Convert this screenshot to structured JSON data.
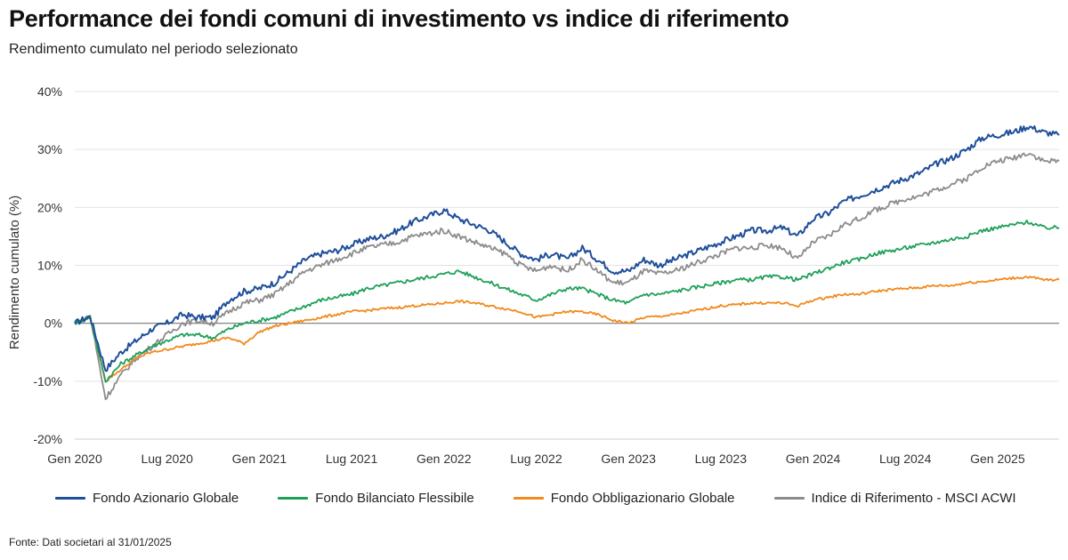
{
  "header": {
    "title": "Performance dei fondi comuni di investimento vs indice di riferimento",
    "subtitle": "Rendimento cumulato nel periodo selezionato"
  },
  "footer": {
    "source": "Fonte: Dati societari al 31/01/2025"
  },
  "colors": {
    "azionario": "#1f4e9a",
    "bilanciato": "#1fa05a",
    "obbligazionario": "#f08a1c",
    "indice": "#8c8c8c",
    "grid": "#e3e3e3",
    "zero": "#777777"
  },
  "chart_data": {
    "type": "line",
    "title": "Performance dei fondi comuni di investimento vs indice di riferimento",
    "subtitle": "Rendimento cumulato nel periodo selezionato",
    "xlabel": "",
    "ylabel": "Rendimento cumulato (%)",
    "ylim": [
      -20,
      40
    ],
    "yticks": [
      -20,
      -10,
      0,
      10,
      20,
      30,
      40
    ],
    "ytick_labels": [
      "-20%",
      "-10%",
      "0%",
      "10%",
      "20%",
      "30%",
      "40%"
    ],
    "xlim": [
      "2020-01",
      "2025-05"
    ],
    "xticks": [
      "2020-01",
      "2020-07",
      "2021-01",
      "2021-07",
      "2022-01",
      "2022-07",
      "2023-01",
      "2023-07",
      "2024-01",
      "2024-07",
      "2025-01"
    ],
    "xtick_labels": [
      "Gen 2020",
      "Lug 2020",
      "Gen 2021",
      "Lug 2021",
      "Gen 2022",
      "Lug 2022",
      "Gen 2023",
      "Lug 2023",
      "Gen 2024",
      "Lug 2024",
      "Gen 2025"
    ],
    "grid": "horizontal",
    "legend_position": "bottom",
    "series": [
      {
        "name": "Fondo Azionario Globale",
        "color": "#1f4e9a",
        "points": [
          [
            "2020-01",
            0
          ],
          [
            "2020-02",
            1.2
          ],
          [
            "2020-03",
            -8
          ],
          [
            "2020-04",
            -5
          ],
          [
            "2020-05",
            -3
          ],
          [
            "2020-06",
            -1
          ],
          [
            "2020-07",
            0
          ],
          [
            "2020-08",
            1.5
          ],
          [
            "2020-09",
            1
          ],
          [
            "2020-10",
            1
          ],
          [
            "2020-11",
            4
          ],
          [
            "2020-12",
            5.5
          ],
          [
            "2021-01",
            6
          ],
          [
            "2021-02",
            7
          ],
          [
            "2021-03",
            9
          ],
          [
            "2021-04",
            11
          ],
          [
            "2021-05",
            12
          ],
          [
            "2021-06",
            12.5
          ],
          [
            "2021-07",
            13.5
          ],
          [
            "2021-08",
            14.5
          ],
          [
            "2021-09",
            15
          ],
          [
            "2021-10",
            16
          ],
          [
            "2021-11",
            17.5
          ],
          [
            "2021-12",
            18.5
          ],
          [
            "2022-01",
            19.5
          ],
          [
            "2022-02",
            18
          ],
          [
            "2022-03",
            17
          ],
          [
            "2022-04",
            16
          ],
          [
            "2022-05",
            14
          ],
          [
            "2022-06",
            12
          ],
          [
            "2022-07",
            11
          ],
          [
            "2022-08",
            12
          ],
          [
            "2022-09",
            11
          ],
          [
            "2022-10",
            13
          ],
          [
            "2022-11",
            11
          ],
          [
            "2022-12",
            9
          ],
          [
            "2023-01",
            9
          ],
          [
            "2023-02",
            11
          ],
          [
            "2023-03",
            10
          ],
          [
            "2023-04",
            11
          ],
          [
            "2023-05",
            12
          ],
          [
            "2023-06",
            13
          ],
          [
            "2023-07",
            14
          ],
          [
            "2023-08",
            15
          ],
          [
            "2023-09",
            16
          ],
          [
            "2023-10",
            16
          ],
          [
            "2023-11",
            16.5
          ],
          [
            "2023-12",
            15
          ],
          [
            "2024-01",
            18
          ],
          [
            "2024-02",
            19
          ],
          [
            "2024-03",
            21
          ],
          [
            "2024-04",
            22
          ],
          [
            "2024-05",
            23
          ],
          [
            "2024-06",
            24
          ],
          [
            "2024-07",
            25
          ],
          [
            "2024-08",
            26
          ],
          [
            "2024-09",
            27.5
          ],
          [
            "2024-10",
            28.5
          ],
          [
            "2024-11",
            30
          ],
          [
            "2024-12",
            32
          ],
          [
            "2025-01",
            32.5
          ],
          [
            "2025-02",
            33
          ],
          [
            "2025-03",
            34
          ],
          [
            "2025-04",
            33
          ],
          [
            "2025-05",
            32.5
          ]
        ]
      },
      {
        "name": "Fondo Bilanciato Flessibile",
        "color": "#1fa05a",
        "points": [
          [
            "2020-01",
            0
          ],
          [
            "2020-02",
            1.1
          ],
          [
            "2020-03",
            -10
          ],
          [
            "2020-04",
            -7
          ],
          [
            "2020-05",
            -5.5
          ],
          [
            "2020-06",
            -4
          ],
          [
            "2020-07",
            -3
          ],
          [
            "2020-08",
            -2
          ],
          [
            "2020-09",
            -2
          ],
          [
            "2020-10",
            -2.5
          ],
          [
            "2020-11",
            -1
          ],
          [
            "2020-12",
            0
          ],
          [
            "2021-01",
            0.5
          ],
          [
            "2021-02",
            1
          ],
          [
            "2021-03",
            2
          ],
          [
            "2021-04",
            3
          ],
          [
            "2021-05",
            4
          ],
          [
            "2021-06",
            4.5
          ],
          [
            "2021-07",
            5
          ],
          [
            "2021-08",
            6
          ],
          [
            "2021-09",
            6.5
          ],
          [
            "2021-10",
            7
          ],
          [
            "2021-11",
            7.5
          ],
          [
            "2021-12",
            8
          ],
          [
            "2022-01",
            8.5
          ],
          [
            "2022-02",
            9
          ],
          [
            "2022-03",
            8
          ],
          [
            "2022-04",
            7
          ],
          [
            "2022-05",
            6
          ],
          [
            "2022-06",
            5
          ],
          [
            "2022-07",
            4
          ],
          [
            "2022-08",
            5
          ],
          [
            "2022-09",
            6
          ],
          [
            "2022-10",
            6
          ],
          [
            "2022-11",
            5
          ],
          [
            "2022-12",
            4
          ],
          [
            "2023-01",
            3.5
          ],
          [
            "2023-02",
            5
          ],
          [
            "2023-03",
            5
          ],
          [
            "2023-04",
            5.5
          ],
          [
            "2023-05",
            6
          ],
          [
            "2023-06",
            6.5
          ],
          [
            "2023-07",
            7
          ],
          [
            "2023-08",
            7.5
          ],
          [
            "2023-09",
            7.5
          ],
          [
            "2023-10",
            8
          ],
          [
            "2023-11",
            8
          ],
          [
            "2023-12",
            7.5
          ],
          [
            "2024-01",
            8.5
          ],
          [
            "2024-02",
            9.5
          ],
          [
            "2024-03",
            10.5
          ],
          [
            "2024-04",
            11
          ],
          [
            "2024-05",
            12
          ],
          [
            "2024-06",
            12.5
          ],
          [
            "2024-07",
            13
          ],
          [
            "2024-08",
            13.5
          ],
          [
            "2024-09",
            14
          ],
          [
            "2024-10",
            14.5
          ],
          [
            "2024-11",
            15
          ],
          [
            "2024-12",
            16
          ],
          [
            "2025-01",
            16.5
          ],
          [
            "2025-02",
            17
          ],
          [
            "2025-03",
            17.5
          ],
          [
            "2025-04",
            16.5
          ],
          [
            "2025-05",
            16.5
          ]
        ]
      },
      {
        "name": "Fondo Obbligazionario Globale",
        "color": "#f08a1c",
        "points": [
          [
            "2020-01",
            0
          ],
          [
            "2020-02",
            1
          ],
          [
            "2020-03",
            -10
          ],
          [
            "2020-04",
            -8
          ],
          [
            "2020-05",
            -6
          ],
          [
            "2020-06",
            -5
          ],
          [
            "2020-07",
            -4.5
          ],
          [
            "2020-08",
            -4
          ],
          [
            "2020-09",
            -3.5
          ],
          [
            "2020-10",
            -3
          ],
          [
            "2020-11",
            -2.5
          ],
          [
            "2020-12",
            -3.5
          ],
          [
            "2021-01",
            -1.5
          ],
          [
            "2021-02",
            -0.5
          ],
          [
            "2021-03",
            0
          ],
          [
            "2021-04",
            0.5
          ],
          [
            "2021-05",
            1
          ],
          [
            "2021-06",
            1.5
          ],
          [
            "2021-07",
            2
          ],
          [
            "2021-08",
            2.2
          ],
          [
            "2021-09",
            2.5
          ],
          [
            "2021-10",
            2.7
          ],
          [
            "2021-11",
            3
          ],
          [
            "2021-12",
            3.2
          ],
          [
            "2022-01",
            3.5
          ],
          [
            "2022-02",
            3.8
          ],
          [
            "2022-03",
            3.5
          ],
          [
            "2022-04",
            3
          ],
          [
            "2022-05",
            2.5
          ],
          [
            "2022-06",
            2
          ],
          [
            "2022-07",
            1
          ],
          [
            "2022-08",
            1.5
          ],
          [
            "2022-09",
            2
          ],
          [
            "2022-10",
            2
          ],
          [
            "2022-11",
            1.5
          ],
          [
            "2022-12",
            0.5
          ],
          [
            "2023-01",
            0
          ],
          [
            "2023-02",
            1
          ],
          [
            "2023-03",
            1.2
          ],
          [
            "2023-04",
            1.5
          ],
          [
            "2023-05",
            2
          ],
          [
            "2023-06",
            2.5
          ],
          [
            "2023-07",
            3
          ],
          [
            "2023-08",
            3.2
          ],
          [
            "2023-09",
            3.5
          ],
          [
            "2023-10",
            3.5
          ],
          [
            "2023-11",
            3.5
          ],
          [
            "2023-12",
            3
          ],
          [
            "2024-01",
            4
          ],
          [
            "2024-02",
            4.5
          ],
          [
            "2024-03",
            5
          ],
          [
            "2024-04",
            5
          ],
          [
            "2024-05",
            5.5
          ],
          [
            "2024-06",
            5.8
          ],
          [
            "2024-07",
            6
          ],
          [
            "2024-08",
            6.2
          ],
          [
            "2024-09",
            6.5
          ],
          [
            "2024-10",
            6.5
          ],
          [
            "2024-11",
            7
          ],
          [
            "2024-12",
            7.2
          ],
          [
            "2025-01",
            7.5
          ],
          [
            "2025-02",
            7.8
          ],
          [
            "2025-03",
            8
          ],
          [
            "2025-04",
            7.5
          ],
          [
            "2025-05",
            7.5
          ]
        ]
      },
      {
        "name": "Indice di Riferimento - MSCI ACWI",
        "color": "#8c8c8c",
        "points": [
          [
            "2020-01",
            0
          ],
          [
            "2020-02",
            1.3
          ],
          [
            "2020-03",
            -13
          ],
          [
            "2020-04",
            -9
          ],
          [
            "2020-05",
            -6
          ],
          [
            "2020-06",
            -4
          ],
          [
            "2020-07",
            -2
          ],
          [
            "2020-08",
            0
          ],
          [
            "2020-09",
            0.5
          ],
          [
            "2020-10",
            0
          ],
          [
            "2020-11",
            2
          ],
          [
            "2020-12",
            3.5
          ],
          [
            "2021-01",
            4
          ],
          [
            "2021-02",
            5
          ],
          [
            "2021-03",
            7
          ],
          [
            "2021-04",
            9
          ],
          [
            "2021-05",
            10
          ],
          [
            "2021-06",
            11
          ],
          [
            "2021-07",
            12
          ],
          [
            "2021-08",
            13
          ],
          [
            "2021-09",
            13.5
          ],
          [
            "2021-10",
            14
          ],
          [
            "2021-11",
            15
          ],
          [
            "2021-12",
            15.5
          ],
          [
            "2022-01",
            16
          ],
          [
            "2022-02",
            15
          ],
          [
            "2022-03",
            14
          ],
          [
            "2022-04",
            13
          ],
          [
            "2022-05",
            12
          ],
          [
            "2022-06",
            10
          ],
          [
            "2022-07",
            9
          ],
          [
            "2022-08",
            10
          ],
          [
            "2022-09",
            9
          ],
          [
            "2022-10",
            11
          ],
          [
            "2022-11",
            9
          ],
          [
            "2022-12",
            7
          ],
          [
            "2023-01",
            7
          ],
          [
            "2023-02",
            9
          ],
          [
            "2023-03",
            8.5
          ],
          [
            "2023-04",
            9
          ],
          [
            "2023-05",
            10
          ],
          [
            "2023-06",
            11
          ],
          [
            "2023-07",
            12
          ],
          [
            "2023-08",
            13
          ],
          [
            "2023-09",
            13
          ],
          [
            "2023-10",
            13.5
          ],
          [
            "2023-11",
            13
          ],
          [
            "2023-12",
            11
          ],
          [
            "2024-01",
            14
          ],
          [
            "2024-02",
            15
          ],
          [
            "2024-03",
            17
          ],
          [
            "2024-04",
            18
          ],
          [
            "2024-05",
            19.5
          ],
          [
            "2024-06",
            20.5
          ],
          [
            "2024-07",
            21.5
          ],
          [
            "2024-08",
            22
          ],
          [
            "2024-09",
            23
          ],
          [
            "2024-10",
            24
          ],
          [
            "2024-11",
            25
          ],
          [
            "2024-12",
            27
          ],
          [
            "2025-01",
            28
          ],
          [
            "2025-02",
            28.5
          ],
          [
            "2025-03",
            29.5
          ],
          [
            "2025-04",
            28
          ],
          [
            "2025-05",
            28
          ]
        ]
      }
    ]
  }
}
